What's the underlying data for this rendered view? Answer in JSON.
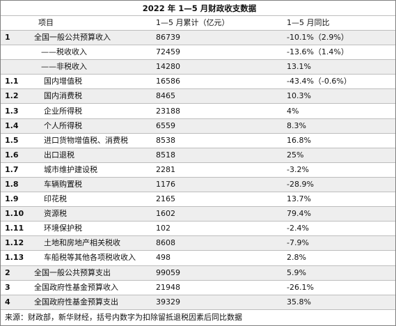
{
  "title": "2022 年 1—5 月财政收支数据",
  "header": {
    "col1": "",
    "col2": "项目",
    "col3": "1—5 月累计（亿元）",
    "col4": "1—5 月同比"
  },
  "rows": [
    {
      "no": "1",
      "item": "全国一般公共预算收入",
      "cum": "86739",
      "yoy": "-10.1%（2.9%）"
    },
    {
      "no": "",
      "item": "——税收收入",
      "cum": "72459",
      "yoy": "-13.6%（1.4%）"
    },
    {
      "no": "",
      "item": "——非税收入",
      "cum": "14280",
      "yoy": "13.1%"
    },
    {
      "no": "1.1",
      "item": "国内增值税",
      "cum": "16586",
      "yoy": "-43.4%（-0.6%）"
    },
    {
      "no": "1.2",
      "item": "国内消费税",
      "cum": "8465",
      "yoy": "10.3%"
    },
    {
      "no": "1.3",
      "item": "企业所得税",
      "cum": "23188",
      "yoy": "4%"
    },
    {
      "no": "1.4",
      "item": "个人所得税",
      "cum": "6559",
      "yoy": "8.3%"
    },
    {
      "no": "1.5",
      "item": "进口货物增值税、消费税",
      "cum": "8538",
      "yoy": "16.8%"
    },
    {
      "no": "1.6",
      "item": "出口退税",
      "cum": "8518",
      "yoy": "25%"
    },
    {
      "no": "1.7",
      "item": "城市维护建设税",
      "cum": "2281",
      "yoy": "-3.2%"
    },
    {
      "no": "1.8",
      "item": "车辆购置税",
      "cum": "1176",
      "yoy": "-28.9%"
    },
    {
      "no": "1.9",
      "item": "印花税",
      "cum": "2165",
      "yoy": "13.7%"
    },
    {
      "no": "1.10",
      "item": "资源税",
      "cum": "1602",
      "yoy": "79.4%"
    },
    {
      "no": "1.11",
      "item": "环境保护税",
      "cum": "102",
      "yoy": "-2.4%"
    },
    {
      "no": "1.12",
      "item": "土地和房地产相关税收",
      "cum": "8608",
      "yoy": "-7.9%"
    },
    {
      "no": "1.13",
      "item": "车船税等其他各项税收收入",
      "cum": "498",
      "yoy": "2.8%"
    },
    {
      "no": "2",
      "item": "全国一般公共预算支出",
      "cum": "99059",
      "yoy": "5.9%"
    },
    {
      "no": "3",
      "item": "全国政府性基金预算收入",
      "cum": "21948",
      "yoy": "-26.1%"
    },
    {
      "no": "4",
      "item": "全国政府性基金预算支出",
      "cum": "39329",
      "yoy": "35.8%"
    }
  ],
  "source": "来源：财政部，新华财经，括号内数字为扣除留抵退税因素后同比数据"
}
